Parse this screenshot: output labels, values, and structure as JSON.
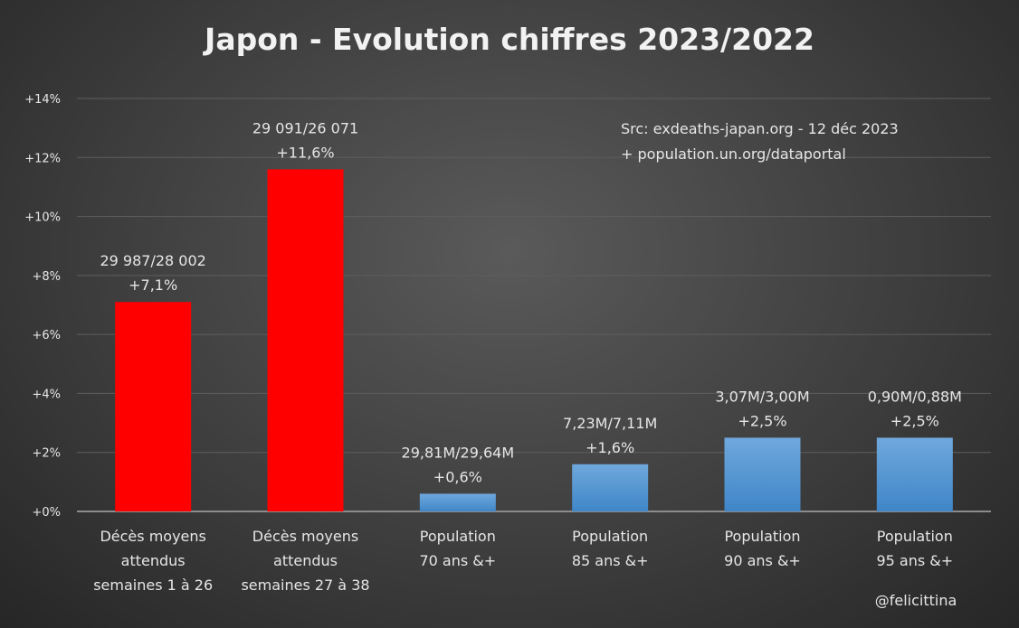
{
  "chart_data": {
    "type": "bar",
    "title": "Japon - Evolution chiffres 2023/2022",
    "xlabel": "",
    "ylabel": "",
    "ylim": [
      0,
      14
    ],
    "yticks": [
      "+0%",
      "+2%",
      "+4%",
      "+6%",
      "+8%",
      "+10%",
      "+12%",
      "+14%"
    ],
    "grid": true,
    "categories": [
      [
        "Décès moyens",
        "attendus",
        "semaines 1 à 26"
      ],
      [
        "Décès moyens",
        "attendus",
        "semaines 27 à 38"
      ],
      [
        "Population",
        "70 ans &+"
      ],
      [
        "Population",
        "85 ans &+"
      ],
      [
        "Population",
        "90 ans &+"
      ],
      [
        "Population",
        "95 ans &+"
      ]
    ],
    "values": [
      7.1,
      11.6,
      0.6,
      1.6,
      2.5,
      2.5
    ],
    "data_labels": [
      [
        "29 987/28 002",
        "+7,1%"
      ],
      [
        "29 091/26 071",
        "+11,6%"
      ],
      [
        "29,81M/29,64M",
        "+0,6%"
      ],
      [
        "7,23M/7,11M",
        "+1,6%"
      ],
      [
        "3,07M/3,00M",
        "+2,5%"
      ],
      [
        "0,90M/0,88M",
        "+2,5%"
      ]
    ],
    "bar_colors": [
      "#ff0000",
      "#ff0000",
      "#5b9bd5",
      "#5b9bd5",
      "#5b9bd5",
      "#5b9bd5"
    ],
    "annotations": {
      "source_line1": "Src: exdeaths-japan.org - 12 déc 2023",
      "source_line2": "+ population.un.org/dataportal",
      "author": "@felicittina"
    }
  }
}
